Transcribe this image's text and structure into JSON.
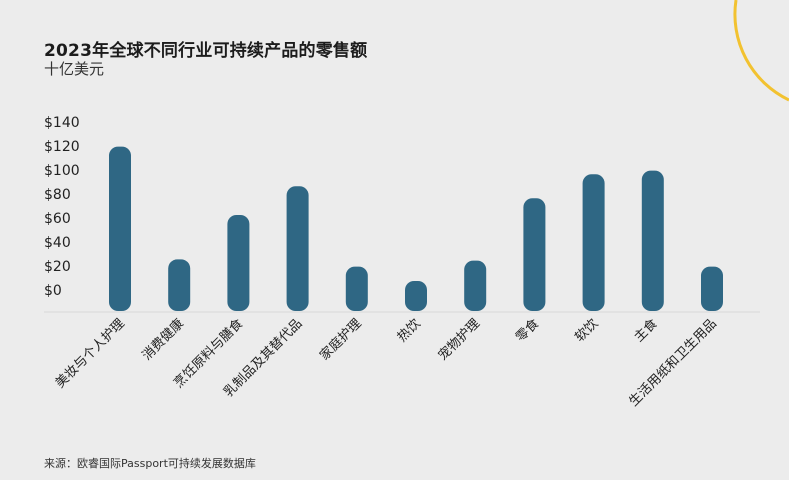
{
  "chart_data": {
    "type": "bar",
    "title": "2023年全球不同行业可持续产品的零售额",
    "subtitle": "十亿美元",
    "source": "来源：欧睿国际Passport可持续发展数据库",
    "ylim": [
      0,
      140
    ],
    "yticks": [
      "$0",
      "$20",
      "$40",
      "$60",
      "$80",
      "$100",
      "$120",
      "$140"
    ],
    "ytick_values": [
      0,
      20,
      40,
      60,
      80,
      100,
      120,
      140
    ],
    "categories": [
      "美妆与个人护理",
      "消费健康",
      "烹饪原料与膳食",
      "乳制品及其替代品",
      "家庭护理",
      "热饮",
      "宠物护理",
      "零食",
      "软饮",
      "主食",
      "生活用纸和卫生用品"
    ],
    "values": [
      137,
      43,
      80,
      104,
      37,
      25,
      42,
      94,
      114,
      117,
      37
    ],
    "grid": false,
    "colors": {
      "bar": "#2f6784",
      "accent_arc": "#f2c230",
      "baseline": "#d8d8d8"
    }
  }
}
